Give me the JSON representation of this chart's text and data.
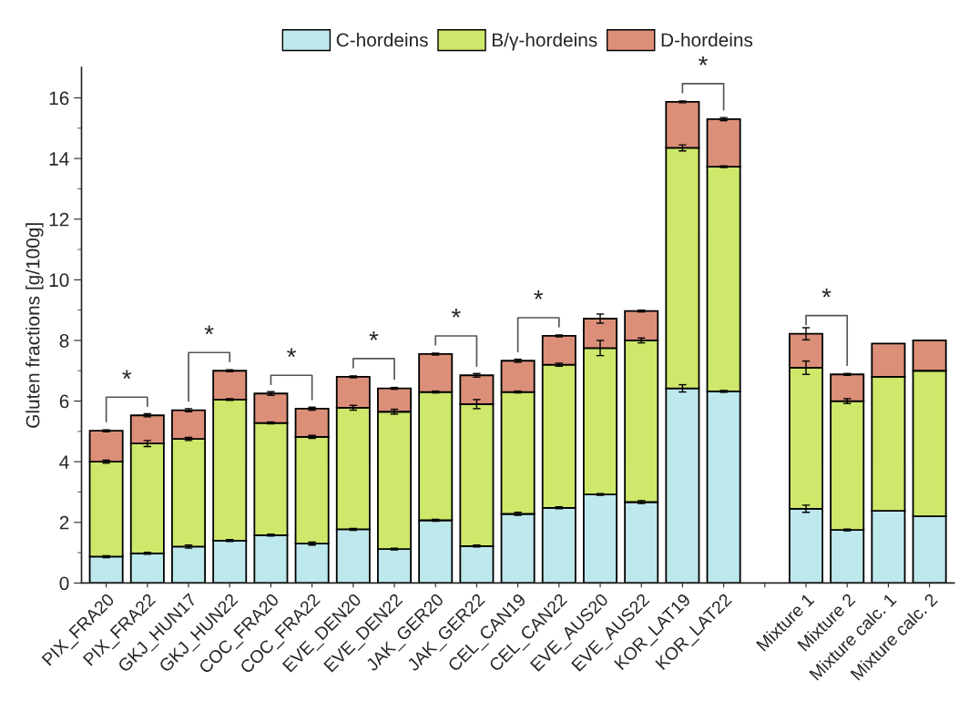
{
  "chart_data": {
    "type": "bar",
    "stacked": true,
    "ylabel": "Gluten fractions [g/100g]",
    "categories": [
      "PIX_FRA20",
      "PIX_FRA22",
      "GKJ_HUN17",
      "GKJ_HUN22",
      "COC_FRA20",
      "COC_FRA22",
      "EVE_DEN20",
      "EVE_DEN22",
      "JAK_GER20",
      "JAK_GER22",
      "CEL_CAN19",
      "CEL_CAN22",
      "EVE_AUS20",
      "EVE_AUS22",
      "KOR_LAT19",
      "KOR_LAT22",
      null,
      "Mixture 1",
      "Mixture 2",
      "Mixture calc. 1",
      "Mixture calc. 2"
    ],
    "series": [
      {
        "name": "C-hordeins",
        "color": "#bde8ec",
        "values": [
          0.87,
          0.98,
          1.2,
          1.4,
          1.58,
          1.3,
          1.77,
          1.12,
          2.07,
          1.22,
          2.28,
          2.48,
          2.92,
          2.67,
          6.42,
          6.32,
          null,
          2.45,
          1.75,
          2.38,
          2.2
        ],
        "errors": [
          0.03,
          0.03,
          0.05,
          0.03,
          0.03,
          0.05,
          0.03,
          0.03,
          0.03,
          0.03,
          0.05,
          0.03,
          0.03,
          0.05,
          0.12,
          0.03,
          null,
          0.12,
          0.03,
          null,
          null
        ]
      },
      {
        "name": "B/γ-hordeins",
        "color": "#cde86a",
        "values": [
          3.13,
          3.62,
          3.55,
          4.65,
          3.7,
          3.52,
          4.01,
          4.53,
          4.23,
          4.68,
          4.02,
          4.72,
          4.83,
          5.33,
          7.93,
          7.41,
          null,
          4.65,
          4.25,
          4.42,
          4.8
        ],
        "errors": [
          0.05,
          0.1,
          0.05,
          0.03,
          0.03,
          0.05,
          0.08,
          0.08,
          0.03,
          0.15,
          0.03,
          0.05,
          0.25,
          0.08,
          0.1,
          0.03,
          null,
          0.22,
          0.08,
          null,
          null
        ]
      },
      {
        "name": "D-hordeins",
        "color": "#dc8f78",
        "values": [
          1.02,
          0.93,
          0.95,
          0.95,
          0.97,
          0.93,
          1.02,
          0.77,
          1.25,
          0.95,
          1.03,
          0.95,
          0.97,
          0.97,
          1.52,
          1.57,
          null,
          1.12,
          0.88,
          1.1,
          1.0
        ],
        "errors": [
          0.03,
          0.05,
          0.05,
          0.03,
          0.06,
          0.05,
          0.03,
          0.03,
          0.03,
          0.06,
          0.05,
          0.03,
          0.15,
          0.03,
          0.03,
          0.05,
          null,
          0.2,
          0.03,
          null,
          null
        ]
      }
    ],
    "ylim": [
      0,
      17
    ],
    "yticks": [
      0,
      2,
      4,
      6,
      8,
      10,
      12,
      14,
      16
    ],
    "annotations": [
      "*",
      "*",
      "*",
      "*",
      "*",
      "*",
      "*",
      "*"
    ],
    "legend": "top",
    "grid": false
  }
}
